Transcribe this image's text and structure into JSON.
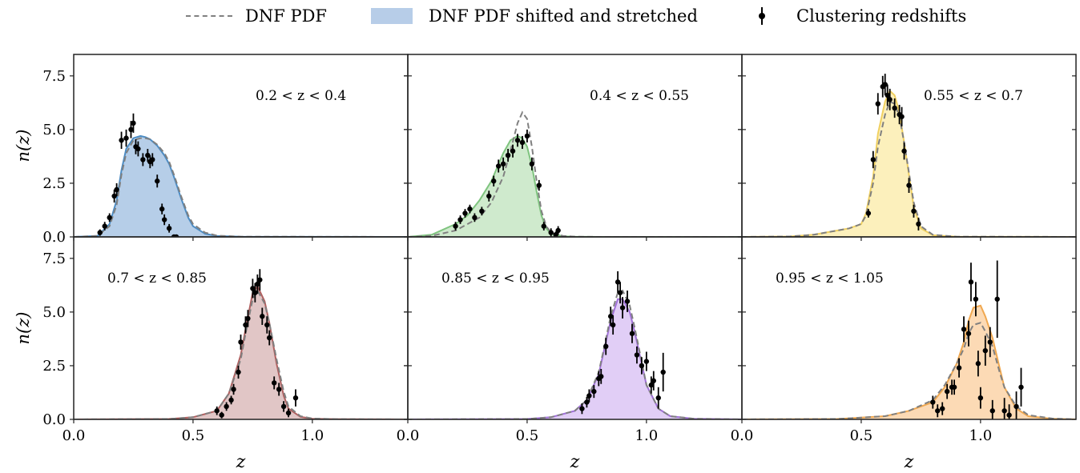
{
  "legend": {
    "items": [
      {
        "label": "DNF PDF",
        "style": "dashed",
        "color": "#808080"
      },
      {
        "label": "DNF PDF shifted and stretched",
        "style": "patch",
        "color": "#b7cde8"
      },
      {
        "label": "Clustering redshifts",
        "style": "errorbar",
        "color": "#000000"
      }
    ]
  },
  "chart_data": {
    "type": "line",
    "layout": "2x3 panels, shared axes",
    "xlabel": "z",
    "ylabel": "n(z)",
    "xlim": [
      0.0,
      1.4
    ],
    "ylim": [
      0.0,
      8.5
    ],
    "x_ticks": [
      "0.0",
      "0.5",
      "1.0"
    ],
    "y_ticks": [
      "0.0",
      "2.5",
      "5.0",
      "7.5"
    ],
    "panels": [
      {
        "label": "0.2 < z < 0.4",
        "color": "#4c8cc4",
        "fill": "#a9c6e4",
        "dnf_pdf": {
          "x": [
            0.0,
            0.1,
            0.15,
            0.18,
            0.2,
            0.22,
            0.25,
            0.28,
            0.3,
            0.32,
            0.35,
            0.38,
            0.4,
            0.42,
            0.45,
            0.48,
            0.5,
            0.55,
            0.6,
            0.7,
            1.4
          ],
          "y": [
            0,
            0.05,
            0.5,
            1.5,
            2.9,
            3.9,
            4.5,
            4.6,
            4.6,
            4.55,
            4.3,
            3.9,
            3.5,
            2.9,
            1.9,
            1.0,
            0.6,
            0.2,
            0.06,
            0.01,
            0
          ]
        },
        "shifted": {
          "x": [
            0.0,
            0.1,
            0.15,
            0.18,
            0.2,
            0.22,
            0.25,
            0.28,
            0.3,
            0.32,
            0.35,
            0.38,
            0.4,
            0.42,
            0.45,
            0.48,
            0.5,
            0.55,
            0.6,
            0.7,
            1.4
          ],
          "y": [
            0,
            0.05,
            0.6,
            1.7,
            3.1,
            4.1,
            4.6,
            4.7,
            4.65,
            4.55,
            4.25,
            3.8,
            3.4,
            2.8,
            1.8,
            0.9,
            0.5,
            0.15,
            0.04,
            0.01,
            0
          ]
        },
        "points": {
          "x": [
            0.11,
            0.13,
            0.15,
            0.17,
            0.18,
            0.2,
            0.22,
            0.24,
            0.25,
            0.26,
            0.27,
            0.29,
            0.31,
            0.32,
            0.33,
            0.35,
            0.37,
            0.38,
            0.4,
            0.42,
            0.43
          ],
          "y": [
            0.2,
            0.5,
            0.9,
            1.9,
            2.2,
            4.5,
            4.6,
            5.0,
            5.3,
            4.2,
            4.1,
            3.6,
            3.8,
            3.5,
            3.6,
            2.6,
            1.3,
            0.8,
            0.4,
            0.0,
            0.0
          ],
          "err": [
            0.15,
            0.2,
            0.2,
            0.3,
            0.3,
            0.4,
            0.4,
            0.4,
            0.45,
            0.35,
            0.35,
            0.3,
            0.3,
            0.3,
            0.3,
            0.3,
            0.25,
            0.25,
            0.2,
            0.0,
            0.0
          ]
        }
      },
      {
        "label": "0.4 < z < 0.55",
        "color": "#7fc47f",
        "fill": "#c7e6c4",
        "dnf_pdf": {
          "x": [
            0.0,
            0.1,
            0.2,
            0.3,
            0.35,
            0.4,
            0.43,
            0.46,
            0.48,
            0.5,
            0.52,
            0.54,
            0.56,
            0.58,
            0.6,
            0.65,
            0.7,
            0.8,
            1.4
          ],
          "y": [
            0,
            0.05,
            0.3,
            0.9,
            1.6,
            2.8,
            4.0,
            5.3,
            5.8,
            5.5,
            4.2,
            2.6,
            1.2,
            0.5,
            0.2,
            0.05,
            0.01,
            0,
            0
          ]
        },
        "shifted": {
          "x": [
            0.0,
            0.1,
            0.2,
            0.25,
            0.3,
            0.35,
            0.4,
            0.43,
            0.46,
            0.48,
            0.5,
            0.52,
            0.54,
            0.56,
            0.58,
            0.6,
            0.65,
            0.7,
            0.8,
            1.4
          ],
          "y": [
            0,
            0.1,
            0.6,
            1.0,
            1.7,
            2.6,
            3.9,
            4.5,
            4.7,
            4.6,
            4.2,
            3.3,
            2.1,
            1.0,
            0.4,
            0.15,
            0.03,
            0.01,
            0,
            0
          ]
        },
        "points": {
          "x": [
            0.2,
            0.22,
            0.24,
            0.26,
            0.28,
            0.31,
            0.34,
            0.36,
            0.38,
            0.4,
            0.42,
            0.44,
            0.46,
            0.48,
            0.5,
            0.52,
            0.55,
            0.57,
            0.6,
            0.62,
            0.63
          ],
          "y": [
            0.5,
            0.8,
            1.1,
            1.3,
            0.9,
            1.2,
            1.9,
            2.6,
            3.3,
            3.4,
            3.8,
            4.0,
            4.5,
            4.4,
            4.7,
            3.4,
            2.4,
            0.5,
            0.2,
            0.1,
            0.3
          ],
          "err": [
            0.2,
            0.2,
            0.2,
            0.2,
            0.2,
            0.2,
            0.25,
            0.25,
            0.3,
            0.3,
            0.3,
            0.3,
            0.3,
            0.3,
            0.3,
            0.3,
            0.25,
            0.2,
            0.2,
            0.15,
            0.2
          ]
        }
      },
      {
        "label": "0.55 < z < 0.7",
        "color": "#f0d060",
        "fill": "#fbedb0",
        "dnf_pdf": {
          "x": [
            0.0,
            0.2,
            0.3,
            0.4,
            0.45,
            0.5,
            0.52,
            0.55,
            0.57,
            0.6,
            0.62,
            0.64,
            0.66,
            0.68,
            0.7,
            0.72,
            0.75,
            0.8,
            0.9,
            1.4
          ],
          "y": [
            0,
            0.02,
            0.1,
            0.3,
            0.4,
            0.6,
            1.0,
            2.5,
            4.2,
            5.7,
            6.3,
            6.2,
            5.6,
            4.4,
            3.0,
            1.6,
            0.5,
            0.1,
            0.01,
            0
          ]
        },
        "shifted": {
          "x": [
            0.0,
            0.2,
            0.3,
            0.4,
            0.45,
            0.5,
            0.52,
            0.55,
            0.57,
            0.6,
            0.62,
            0.64,
            0.66,
            0.68,
            0.7,
            0.72,
            0.75,
            0.8,
            0.9,
            1.4
          ],
          "y": [
            0,
            0.02,
            0.1,
            0.3,
            0.4,
            0.6,
            1.1,
            2.8,
            4.8,
            6.3,
            6.8,
            6.6,
            5.8,
            4.4,
            2.9,
            1.4,
            0.4,
            0.08,
            0.01,
            0
          ]
        },
        "points": {
          "x": [
            0.53,
            0.55,
            0.57,
            0.59,
            0.6,
            0.61,
            0.62,
            0.64,
            0.66,
            0.67,
            0.68,
            0.7,
            0.72,
            0.74
          ],
          "y": [
            1.1,
            3.6,
            6.2,
            7.0,
            7.1,
            6.6,
            6.4,
            6.0,
            5.7,
            5.6,
            4.0,
            2.4,
            1.2,
            0.6
          ],
          "err": [
            0.2,
            0.4,
            0.5,
            0.5,
            0.5,
            0.5,
            0.5,
            0.45,
            0.45,
            0.45,
            0.4,
            0.35,
            0.3,
            0.3
          ]
        }
      },
      {
        "label": "0.7 < z < 0.85",
        "color": "#b06060",
        "fill": "#dcbcbc",
        "dnf_pdf": {
          "x": [
            0.0,
            0.4,
            0.5,
            0.6,
            0.65,
            0.7,
            0.72,
            0.75,
            0.77,
            0.8,
            0.82,
            0.85,
            0.88,
            0.9,
            0.95,
            1.0,
            1.1,
            1.4
          ],
          "y": [
            0,
            0.02,
            0.1,
            0.4,
            1.2,
            2.8,
            4.0,
            5.6,
            6.0,
            5.4,
            4.5,
            2.8,
            1.3,
            0.6,
            0.15,
            0.04,
            0.01,
            0
          ]
        },
        "shifted": {
          "x": [
            0.0,
            0.4,
            0.5,
            0.6,
            0.65,
            0.7,
            0.72,
            0.75,
            0.77,
            0.8,
            0.82,
            0.85,
            0.88,
            0.9,
            0.95,
            1.0,
            1.1,
            1.4
          ],
          "y": [
            0,
            0.02,
            0.1,
            0.4,
            1.2,
            3.0,
            4.2,
            5.9,
            6.2,
            5.5,
            4.5,
            2.6,
            1.1,
            0.5,
            0.12,
            0.03,
            0.01,
            0
          ]
        },
        "points": {
          "x": [
            0.6,
            0.62,
            0.64,
            0.66,
            0.67,
            0.69,
            0.7,
            0.72,
            0.73,
            0.75,
            0.76,
            0.77,
            0.78,
            0.79,
            0.81,
            0.82,
            0.84,
            0.86,
            0.88,
            0.9,
            0.93
          ],
          "y": [
            0.4,
            0.2,
            0.6,
            0.9,
            1.4,
            2.2,
            3.6,
            4.4,
            4.7,
            6.1,
            5.9,
            6.3,
            6.5,
            4.8,
            4.4,
            3.8,
            1.7,
            1.4,
            0.6,
            0.3,
            1.0
          ],
          "err": [
            0.2,
            0.15,
            0.2,
            0.2,
            0.25,
            0.3,
            0.35,
            0.4,
            0.4,
            0.45,
            0.45,
            0.45,
            0.5,
            0.4,
            0.4,
            0.35,
            0.3,
            0.3,
            0.25,
            0.2,
            0.4
          ]
        }
      },
      {
        "label": "0.85 < z < 0.95",
        "color": "#a070d8",
        "fill": "#dcc6f4",
        "dnf_pdf": {
          "x": [
            0.0,
            0.5,
            0.6,
            0.7,
            0.75,
            0.8,
            0.82,
            0.85,
            0.88,
            0.9,
            0.93,
            0.95,
            0.98,
            1.0,
            1.05,
            1.1,
            1.2,
            1.4
          ],
          "y": [
            0,
            0.02,
            0.1,
            0.4,
            0.9,
            2.2,
            3.2,
            4.8,
            5.9,
            6.0,
            5.3,
            4.3,
            2.7,
            1.6,
            0.5,
            0.15,
            0.03,
            0
          ]
        },
        "shifted": {
          "x": [
            0.0,
            0.5,
            0.6,
            0.7,
            0.75,
            0.8,
            0.82,
            0.85,
            0.88,
            0.9,
            0.93,
            0.95,
            0.98,
            1.0,
            1.05,
            1.1,
            1.2,
            1.4
          ],
          "y": [
            0,
            0.02,
            0.1,
            0.4,
            0.9,
            2.1,
            3.1,
            4.6,
            5.6,
            5.6,
            5.0,
            4.1,
            2.6,
            1.6,
            0.5,
            0.15,
            0.03,
            0
          ]
        },
        "points": {
          "x": [
            0.73,
            0.75,
            0.76,
            0.78,
            0.8,
            0.81,
            0.83,
            0.85,
            0.86,
            0.88,
            0.89,
            0.9,
            0.92,
            0.94,
            0.96,
            0.98,
            1.0,
            1.02,
            1.03,
            1.05,
            1.07
          ],
          "y": [
            0.5,
            0.8,
            1.1,
            1.3,
            1.9,
            2.0,
            3.4,
            4.8,
            4.4,
            6.4,
            5.9,
            5.2,
            5.5,
            4.0,
            3.0,
            2.5,
            2.7,
            1.6,
            1.8,
            1.0,
            2.2
          ],
          "err": [
            0.25,
            0.25,
            0.3,
            0.3,
            0.35,
            0.35,
            0.4,
            0.45,
            0.45,
            0.5,
            0.5,
            0.5,
            0.5,
            0.45,
            0.4,
            0.4,
            0.45,
            0.4,
            0.45,
            0.5,
            0.9
          ]
        }
      },
      {
        "label": "0.95 < z < 1.05",
        "color": "#f0a850",
        "fill": "#fbd4a8",
        "dnf_pdf": {
          "x": [
            0.0,
            0.4,
            0.6,
            0.7,
            0.8,
            0.85,
            0.9,
            0.93,
            0.95,
            0.97,
            1.0,
            1.02,
            1.05,
            1.08,
            1.1,
            1.15,
            1.2,
            1.3,
            1.4
          ],
          "y": [
            0,
            0.02,
            0.15,
            0.4,
            0.9,
            1.6,
            2.6,
            3.3,
            4.0,
            4.4,
            4.5,
            4.1,
            3.4,
            2.2,
            1.5,
            0.6,
            0.2,
            0.04,
            0
          ]
        },
        "shifted": {
          "x": [
            0.0,
            0.4,
            0.6,
            0.7,
            0.8,
            0.85,
            0.9,
            0.93,
            0.95,
            0.97,
            1.0,
            1.02,
            1.05,
            1.08,
            1.1,
            1.15,
            1.2,
            1.3,
            1.4
          ],
          "y": [
            0,
            0.02,
            0.15,
            0.4,
            0.8,
            1.5,
            2.6,
            3.6,
            4.6,
            5.2,
            5.3,
            4.8,
            3.8,
            2.4,
            1.5,
            0.5,
            0.15,
            0.03,
            0
          ]
        },
        "points": {
          "x": [
            0.8,
            0.82,
            0.84,
            0.86,
            0.88,
            0.89,
            0.91,
            0.93,
            0.95,
            0.96,
            0.98,
            0.99,
            1.0,
            1.02,
            1.04,
            1.05,
            1.07,
            1.1,
            1.12,
            1.15,
            1.17
          ],
          "y": [
            0.8,
            0.4,
            0.5,
            1.3,
            1.5,
            1.5,
            2.4,
            4.2,
            4.0,
            6.4,
            5.6,
            2.6,
            1.0,
            3.2,
            3.6,
            0.4,
            5.6,
            0.4,
            0.2,
            0.6,
            1.5
          ],
          "err": [
            0.3,
            0.3,
            0.3,
            0.35,
            0.35,
            0.35,
            0.45,
            0.6,
            0.6,
            0.9,
            0.8,
            0.6,
            0.5,
            0.7,
            0.7,
            0.5,
            1.8,
            0.6,
            0.5,
            0.7,
            0.9
          ]
        }
      }
    ]
  }
}
